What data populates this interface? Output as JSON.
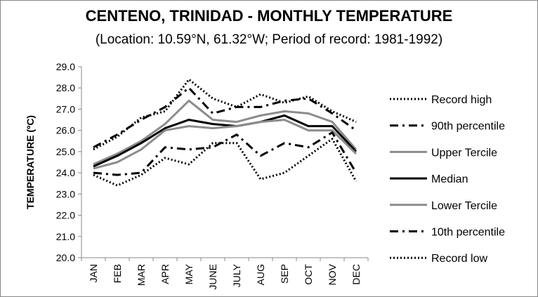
{
  "chart_data": {
    "type": "line",
    "title": "CENTENO, TRINIDAD - MONTHLY TEMPERATURE",
    "subtitle": "(Location: 10.59°N, 61.32°W; Period of record: 1981-1992)",
    "ylabel": "TEMPERATURE (ºC)",
    "xlabel": "",
    "ylim": [
      20,
      29
    ],
    "yticks": [
      "20.0",
      "21.0",
      "22.0",
      "23.0",
      "24.0",
      "25.0",
      "26.0",
      "27.0",
      "28.0",
      "29.0"
    ],
    "categories": [
      "JAN",
      "FEB",
      "MAR",
      "APR",
      "MAY",
      "JUNE",
      "JULY",
      "AUG",
      "SEP",
      "OCT",
      "NOV",
      "DEC"
    ],
    "grid": false,
    "legend_position": "right",
    "series": [
      {
        "name": "Record high",
        "color": "#000000",
        "style": "dotted",
        "width": 3,
        "values": [
          25.1,
          25.7,
          26.6,
          26.9,
          28.4,
          27.5,
          27.1,
          27.7,
          27.3,
          27.6,
          26.9,
          26.4
        ]
      },
      {
        "name": "90th percentile",
        "color": "#000000",
        "style": "dashdot",
        "width": 3,
        "values": [
          25.2,
          25.8,
          26.5,
          27.1,
          28.0,
          26.8,
          27.1,
          27.1,
          27.4,
          27.5,
          26.8,
          26.0
        ]
      },
      {
        "name": "Upper Tercile",
        "color": "#8c8c8c",
        "style": "solid",
        "width": 3,
        "values": [
          24.4,
          24.9,
          25.5,
          26.3,
          27.4,
          26.5,
          26.4,
          26.7,
          26.9,
          26.8,
          26.4,
          25.1
        ]
      },
      {
        "name": "Median",
        "color": "#000000",
        "style": "solid",
        "width": 3,
        "values": [
          24.3,
          24.8,
          25.4,
          26.1,
          26.5,
          26.3,
          26.2,
          26.4,
          26.7,
          26.2,
          26.2,
          25.0
        ]
      },
      {
        "name": "Lower Tercile",
        "color": "#8c8c8c",
        "style": "solid",
        "width": 3,
        "values": [
          24.2,
          24.5,
          25.1,
          26.0,
          26.2,
          26.1,
          26.2,
          26.4,
          26.5,
          26.0,
          26.0,
          24.9
        ]
      },
      {
        "name": "10th percentile",
        "color": "#000000",
        "style": "dashdot",
        "width": 3,
        "values": [
          24.0,
          23.9,
          24.0,
          25.2,
          25.1,
          25.2,
          25.8,
          24.8,
          25.4,
          25.2,
          25.9,
          24.0
        ]
      },
      {
        "name": "Record low",
        "color": "#000000",
        "style": "dotted",
        "width": 3,
        "values": [
          23.9,
          23.4,
          23.9,
          24.7,
          24.4,
          25.4,
          25.4,
          23.7,
          24.0,
          24.8,
          25.6,
          23.6
        ]
      }
    ]
  }
}
